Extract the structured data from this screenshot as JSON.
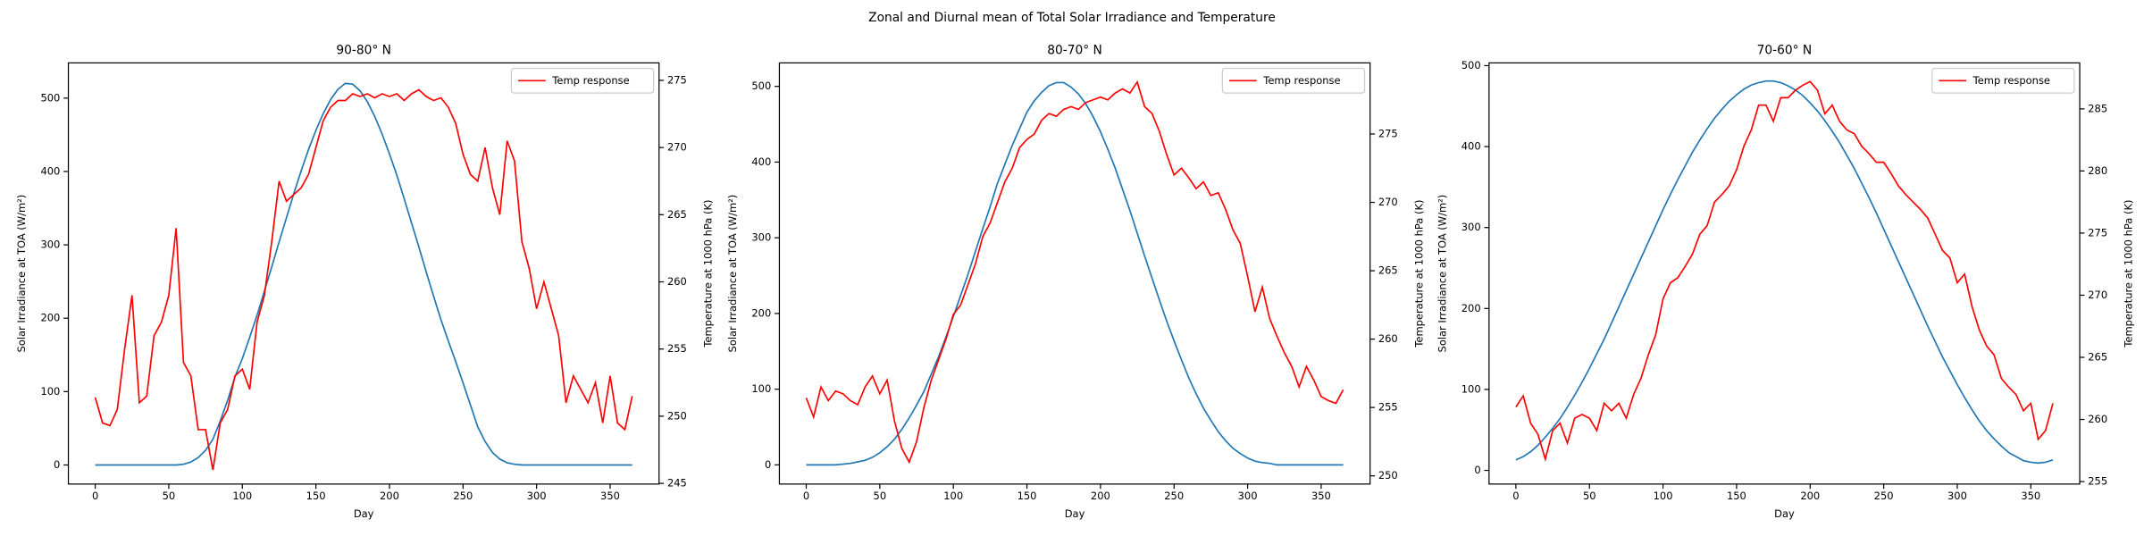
{
  "title": "Zonal and Diurnal mean of Total Solar Irradiance and Temperature",
  "chart_data": [
    {
      "type": "line",
      "title": "90-80° N",
      "xlabel": "Day",
      "ylabel": "Solar Irradiance at TOA (W/m²)",
      "y2label": "Temperature at 1000 hPa (K)",
      "x": [
        0,
        5,
        10,
        15,
        20,
        25,
        30,
        35,
        40,
        45,
        50,
        55,
        60,
        65,
        70,
        75,
        80,
        85,
        90,
        95,
        100,
        105,
        110,
        115,
        120,
        125,
        130,
        135,
        140,
        145,
        150,
        155,
        160,
        165,
        170,
        175,
        180,
        185,
        190,
        195,
        200,
        205,
        210,
        215,
        220,
        225,
        230,
        235,
        240,
        245,
        250,
        255,
        260,
        265,
        270,
        275,
        280,
        285,
        290,
        295,
        300,
        305,
        310,
        315,
        320,
        325,
        330,
        335,
        340,
        345,
        350,
        355,
        360,
        365
      ],
      "xlim": [
        -18.25,
        383.25
      ],
      "xticks": [
        0,
        50,
        100,
        150,
        200,
        250,
        300,
        350
      ],
      "ylim": [
        -26,
        548
      ],
      "yticks": [
        0,
        100,
        200,
        300,
        400,
        500
      ],
      "y2lim": [
        244.95,
        276.3
      ],
      "y2ticks": [
        245,
        250,
        255,
        260,
        265,
        270,
        275
      ],
      "legend": "upper right",
      "series": [
        {
          "color": "#1f77b4",
          "values": [
            0,
            0,
            0,
            0,
            0,
            0,
            0,
            0,
            0,
            0,
            0,
            0,
            1,
            4,
            10,
            20,
            35,
            60,
            88,
            120,
            145,
            174,
            204,
            237,
            270,
            304,
            337,
            370,
            401,
            430,
            456,
            479,
            498,
            512,
            520,
            519,
            510,
            495,
            475,
            451,
            424,
            395,
            363,
            330,
            297,
            263,
            230,
            198,
            169,
            141,
            112,
            82,
            52,
            32,
            17,
            8,
            3,
            1,
            0,
            0,
            0,
            0,
            0,
            0,
            0,
            0,
            0,
            0,
            0,
            0,
            0,
            0,
            0,
            0
          ]
        },
        {
          "name": "Temp response",
          "color": "#ff0000",
          "axis": "y2",
          "values": [
            251.4,
            249.5,
            249.3,
            250.5,
            255,
            259,
            251,
            251.5,
            256,
            257,
            259,
            264,
            254,
            253,
            249,
            249,
            246,
            249.5,
            250.5,
            253,
            253.5,
            252,
            257,
            259,
            263,
            267.5,
            266,
            266.5,
            267,
            268,
            270,
            272,
            273,
            273.5,
            273.5,
            274,
            273.8,
            274,
            273.7,
            274,
            273.8,
            274,
            273.5,
            274,
            274.3,
            273.8,
            273.5,
            273.7,
            273,
            271.8,
            269.5,
            268,
            267.5,
            270,
            267,
            265,
            270.5,
            269,
            263,
            261,
            258,
            260,
            258,
            256,
            251,
            253,
            252,
            251,
            252.5,
            249.5,
            253,
            249.5,
            249,
            251.5
          ]
        }
      ]
    },
    {
      "type": "line",
      "title": "80-70° N",
      "xlabel": "Day",
      "ylabel": "Solar Irradiance at TOA (W/m²)",
      "y2label": "Temperature at 1000 hPa (K)",
      "x": [
        0,
        5,
        10,
        15,
        20,
        25,
        30,
        35,
        40,
        45,
        50,
        55,
        60,
        65,
        70,
        75,
        80,
        85,
        90,
        95,
        100,
        105,
        110,
        115,
        120,
        125,
        130,
        135,
        140,
        145,
        150,
        155,
        160,
        165,
        170,
        175,
        180,
        185,
        190,
        195,
        200,
        205,
        210,
        215,
        220,
        225,
        230,
        235,
        240,
        245,
        250,
        255,
        260,
        265,
        270,
        275,
        280,
        285,
        290,
        295,
        300,
        305,
        310,
        315,
        320,
        325,
        330,
        335,
        340,
        345,
        350,
        355,
        360,
        365
      ],
      "xlim": [
        -18.25,
        383.25
      ],
      "xticks": [
        0,
        50,
        100,
        150,
        200,
        250,
        300,
        350
      ],
      "ylim": [
        -25.3,
        531
      ],
      "yticks": [
        0,
        100,
        200,
        300,
        400,
        500
      ],
      "y2lim": [
        249.4,
        280.2
      ],
      "y2ticks": [
        250,
        255,
        260,
        265,
        270,
        275
      ],
      "legend": "upper right",
      "series": [
        {
          "color": "#1f77b4",
          "values": [
            0,
            0,
            0,
            0,
            0,
            1,
            2,
            4,
            6,
            10,
            16,
            24,
            34,
            47,
            62,
            79,
            97,
            120,
            143,
            169,
            196,
            224,
            252,
            282,
            312,
            341,
            372,
            397,
            422,
            444,
            466,
            481,
            492,
            501,
            505,
            505,
            499,
            490,
            477,
            460,
            440,
            417,
            392,
            364,
            336,
            306,
            276,
            247,
            218,
            190,
            164,
            139,
            115,
            94,
            75,
            59,
            44,
            32,
            22,
            15,
            9,
            5,
            3,
            2,
            0,
            0,
            0,
            0,
            0,
            0,
            0,
            0,
            0,
            0
          ]
        },
        {
          "name": "Temp response",
          "color": "#ff0000",
          "axis": "y2",
          "values": [
            255.7,
            254.3,
            256.5,
            255.5,
            256.2,
            256,
            255.5,
            255.2,
            256.5,
            257.3,
            256,
            257,
            254,
            252,
            251,
            252.5,
            255,
            257,
            258.5,
            260,
            261.8,
            262.5,
            264,
            265.5,
            267.5,
            268.5,
            270,
            271.5,
            272.5,
            274,
            274.6,
            275,
            276,
            276.5,
            276.3,
            276.8,
            277,
            276.8,
            277.3,
            277.5,
            277.7,
            277.5,
            278,
            278.3,
            278,
            278.8,
            277,
            276.5,
            275.2,
            273.5,
            272,
            272.5,
            271.8,
            271,
            271.5,
            270.5,
            270.7,
            269.5,
            268,
            267,
            264.6,
            262,
            263.8,
            261.5,
            260.2,
            259,
            258,
            256.5,
            258,
            257,
            255.8,
            255.5,
            255.3,
            256.3
          ]
        }
      ]
    },
    {
      "type": "line",
      "title": "70-60° N",
      "xlabel": "Day",
      "ylabel": "Solar Irradiance at TOA (W/m²)",
      "y2label": "Temperature at 1000 hPa (K)",
      "x": [
        0,
        5,
        10,
        15,
        20,
        25,
        30,
        35,
        40,
        45,
        50,
        55,
        60,
        65,
        70,
        75,
        80,
        85,
        90,
        95,
        100,
        105,
        110,
        115,
        120,
        125,
        130,
        135,
        140,
        145,
        150,
        155,
        160,
        165,
        170,
        175,
        180,
        185,
        190,
        195,
        200,
        205,
        210,
        215,
        220,
        225,
        230,
        235,
        240,
        245,
        250,
        255,
        260,
        265,
        270,
        275,
        280,
        285,
        290,
        295,
        300,
        305,
        310,
        315,
        320,
        325,
        330,
        335,
        340,
        345,
        350,
        355,
        360,
        365
      ],
      "xlim": [
        -18.25,
        383.25
      ],
      "xticks": [
        0,
        50,
        100,
        150,
        200,
        250,
        300,
        350
      ],
      "ylim": [
        -16.9,
        503.4
      ],
      "yticks": [
        0,
        100,
        200,
        300,
        400,
        500
      ],
      "y2lim": [
        254.8,
        288.7
      ],
      "y2ticks": [
        255,
        260,
        265,
        270,
        275,
        280,
        285
      ],
      "legend": "upper right",
      "series": [
        {
          "color": "#1f77b4",
          "values": [
            13,
            17,
            23,
            31,
            41,
            52,
            64,
            78,
            93,
            109,
            126,
            144,
            162,
            182,
            202,
            222,
            242,
            262,
            282,
            302,
            322,
            341,
            359,
            376,
            393,
            408,
            422,
            435,
            446,
            456,
            464,
            471,
            476,
            479,
            481,
            481,
            479,
            475,
            470,
            463,
            454,
            444,
            432,
            419,
            405,
            389,
            373,
            355,
            337,
            318,
            298,
            278,
            258,
            238,
            218,
            198,
            178,
            159,
            140,
            123,
            106,
            90,
            75,
            61,
            49,
            39,
            30,
            22,
            17,
            12,
            10,
            9,
            10,
            13
          ]
        },
        {
          "name": "Temp response",
          "color": "#ff0000",
          "axis": "y2",
          "values": [
            261.0,
            261.9,
            259.7,
            258.8,
            256.8,
            259.1,
            259.7,
            258.1,
            260.1,
            260.4,
            260.1,
            259.1,
            261.3,
            260.7,
            261.3,
            260.1,
            262.0,
            263.3,
            265.2,
            266.8,
            269.7,
            271.0,
            271.4,
            272.3,
            273.3,
            274.9,
            275.6,
            277.5,
            278.1,
            278.8,
            280.1,
            282.0,
            283.3,
            285.3,
            285.3,
            284.0,
            285.9,
            285.9,
            286.5,
            286.9,
            287.2,
            286.5,
            284.6,
            285.3,
            284.0,
            283.3,
            283.0,
            282.0,
            281.4,
            280.7,
            280.7,
            279.8,
            278.8,
            278.1,
            277.5,
            276.9,
            276.2,
            274.9,
            273.6,
            273.0,
            271.0,
            271.7,
            269.1,
            267.2,
            265.9,
            265.2,
            263.3,
            262.6,
            262.0,
            260.7,
            261.3,
            258.4,
            259.1,
            261.3
          ]
        }
      ]
    }
  ]
}
